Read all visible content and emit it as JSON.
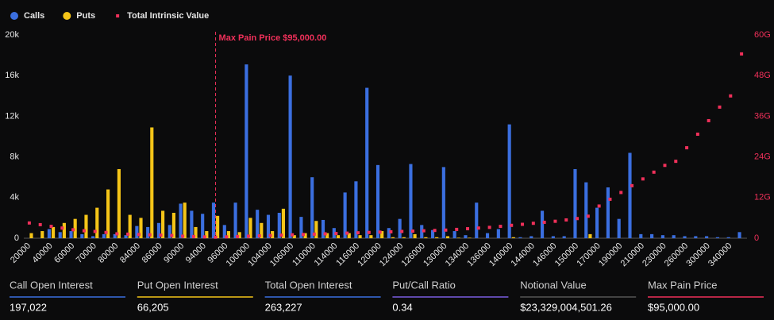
{
  "chart_data": {
    "type": "bar",
    "categories": [
      "20000",
      null,
      "40000",
      null,
      "60000",
      null,
      "70000",
      null,
      "80000",
      null,
      "84000",
      null,
      "86000",
      null,
      "90000",
      null,
      "94000",
      null,
      "96000",
      null,
      "100000",
      null,
      "104000",
      null,
      "106000",
      null,
      "110000",
      null,
      "114000",
      null,
      "116000",
      null,
      "120000",
      null,
      "124000",
      null,
      "126000",
      null,
      "130000",
      null,
      "134000",
      null,
      "136000",
      null,
      "140000",
      null,
      "144000",
      null,
      "146000",
      null,
      "150000",
      null,
      "170000",
      null,
      "190000",
      null,
      "210000",
      null,
      "230000",
      null,
      "260000",
      null,
      "300000",
      null,
      "340000",
      null
    ],
    "series": [
      {
        "name": "Calls",
        "color": "#3b6fe0",
        "values": [
          0,
          0,
          900,
          600,
          700,
          400,
          200,
          400,
          400,
          300,
          1200,
          1100,
          1500,
          1300,
          3400,
          2700,
          2400,
          3500,
          1300,
          3500,
          17100,
          2800,
          2300,
          2500,
          16000,
          2100,
          6000,
          1800,
          1000,
          4500,
          5600,
          14800,
          7200,
          1000,
          1900,
          7300,
          1300,
          800,
          7000,
          700,
          300,
          3500,
          500,
          900,
          11200,
          100,
          200,
          2700,
          200,
          200,
          6800,
          5500,
          3000,
          5000,
          1900,
          8400,
          400,
          400,
          300,
          300,
          200,
          200,
          200,
          100,
          100,
          600
        ]
      },
      {
        "name": "Puts",
        "color": "#f5c518",
        "values": [
          500,
          700,
          1100,
          1500,
          1900,
          2300,
          3000,
          4800,
          6800,
          2300,
          2000,
          10900,
          2700,
          2500,
          3500,
          1100,
          700,
          2200,
          700,
          600,
          2000,
          1500,
          700,
          2900,
          300,
          500,
          1700,
          500,
          300,
          500,
          300,
          300,
          700,
          100,
          100,
          400,
          100,
          100,
          200,
          50,
          50,
          0,
          0,
          0,
          100,
          0,
          0,
          0,
          0,
          0,
          0,
          400,
          0,
          0,
          0,
          0,
          0,
          0,
          0,
          0,
          0,
          0,
          0,
          0,
          0,
          0
        ]
      },
      {
        "name": "Total Intrinsic Value",
        "color": "#f0305a",
        "axis": "y2",
        "values": [
          4.5,
          4,
          3.5,
          3,
          2.5,
          2.2,
          2,
          1.7,
          1.3,
          1.2,
          1.1,
          1,
          0.9,
          0.8,
          0.6,
          0.5,
          0.4,
          0.3,
          0.4,
          0.5,
          0.6,
          0.7,
          0.8,
          0.9,
          1,
          1.1,
          1.2,
          1.3,
          1.4,
          1.5,
          1.6,
          1.7,
          1.8,
          1.9,
          2,
          2.1,
          2.2,
          2.3,
          2.4,
          2.6,
          2.8,
          3,
          3.2,
          3.5,
          3.8,
          4.1,
          4.4,
          4.7,
          5,
          5.4,
          5.8,
          6.5,
          9.5,
          11.5,
          13.5,
          15.5,
          17.5,
          19.5,
          21.5,
          22.7,
          26.7,
          30.7,
          34.7,
          38.7,
          42,
          54.4
        ]
      }
    ],
    "ylim": [
      0,
      20000
    ],
    "yticks": [
      0,
      {
        "value": 4000,
        "label": "4k"
      },
      {
        "value": 8000,
        "label": "8k"
      },
      {
        "value": 12000,
        "label": "12k"
      },
      {
        "value": 16000,
        "label": "16k"
      },
      {
        "value": 20000,
        "label": "20k"
      }
    ],
    "y2lim": [
      0,
      60
    ],
    "y2ticks": [
      0,
      {
        "value": 12,
        "label": "12G"
      },
      {
        "value": 24,
        "label": "24G"
      },
      {
        "value": 36,
        "label": "36G"
      },
      {
        "value": 48,
        "label": "48G"
      },
      {
        "value": 60,
        "label": "60G"
      }
    ],
    "annotation": {
      "text": "Max Pain Price $95,000.00",
      "x": 95000
    },
    "grid": false,
    "legend": "top-left"
  },
  "stats": [
    {
      "label": "Call Open Interest",
      "value": "197,022",
      "color": "#3b6fe0"
    },
    {
      "label": "Put Open Interest",
      "value": "66,205",
      "color": "#f5c518"
    },
    {
      "label": "Total Open Interest",
      "value": "263,227",
      "color": "#3b6fe0"
    },
    {
      "label": "Put/Call Ratio",
      "value": "0.34",
      "color": "#7b5ce0"
    },
    {
      "label": "Notional Value",
      "value": "$23,329,004,501.26",
      "color": "#555555"
    },
    {
      "label": "Max Pain Price",
      "value": "$95,000.00",
      "color": "#f0305a"
    }
  ]
}
